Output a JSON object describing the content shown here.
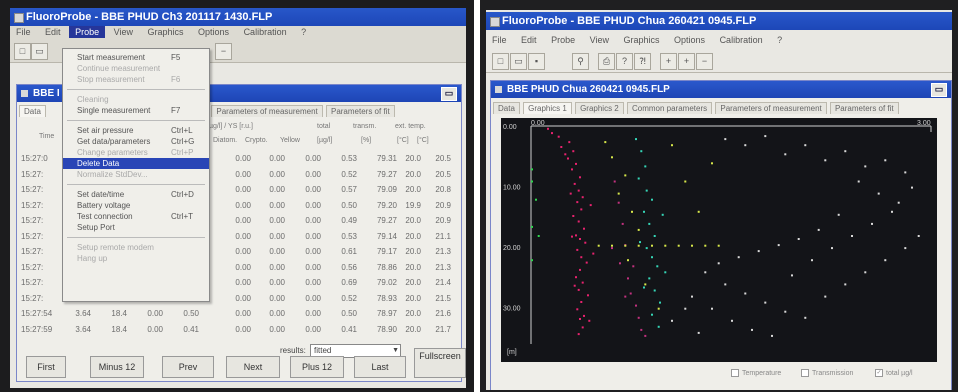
{
  "left": {
    "app_title": "FluoroProbe - BBE PHUD Ch3 201117 1430.FLP",
    "menu": [
      "File",
      "Edit",
      "Probe",
      "View",
      "Graphics",
      "Options",
      "Calibration",
      "?"
    ],
    "subwindow_title": "BBE I",
    "tabs": [
      "Data",
      "Parameters of measurement",
      "Parameters of fit"
    ],
    "header_row1": [
      "[µg/l] / YS [r.u.]",
      "total",
      "transm.",
      "ext. temp."
    ],
    "header_row2": [
      "Time",
      "Diatom.",
      "Crypto.",
      "Yellow",
      "[µg/l]",
      "[%]",
      "[°C]",
      "[°C]"
    ],
    "rows": [
      {
        "time": "15:27:0",
        "diatom": "0.00",
        "crypto": "0.00",
        "yellow": "0.00",
        "total": "0.53",
        "transm": "79.31",
        "ext": "20.0",
        "temp": "20.5"
      },
      {
        "time": "15:27:",
        "diatom": "0.00",
        "crypto": "0.00",
        "yellow": "0.00",
        "total": "0.52",
        "transm": "79.27",
        "ext": "20.0",
        "temp": "20.5"
      },
      {
        "time": "15:27:",
        "diatom": "0.00",
        "crypto": "0.00",
        "yellow": "0.00",
        "total": "0.57",
        "transm": "79.09",
        "ext": "20.0",
        "temp": "20.8"
      },
      {
        "time": "15:27:",
        "diatom": "0.00",
        "crypto": "0.00",
        "yellow": "0.00",
        "total": "0.50",
        "transm": "79.20",
        "ext": "19.9",
        "temp": "20.9"
      },
      {
        "time": "15:27:",
        "diatom": "0.00",
        "crypto": "0.00",
        "yellow": "0.00",
        "total": "0.49",
        "transm": "79.27",
        "ext": "20.0",
        "temp": "20.9"
      },
      {
        "time": "15:27:",
        "diatom": "0.00",
        "crypto": "0.00",
        "yellow": "0.00",
        "total": "0.53",
        "transm": "79.14",
        "ext": "20.0",
        "temp": "21.1"
      },
      {
        "time": "15:27:",
        "diatom": "0.00",
        "crypto": "0.00",
        "yellow": "0.00",
        "total": "0.61",
        "transm": "79.17",
        "ext": "20.0",
        "temp": "21.3"
      },
      {
        "time": "15:27:",
        "diatom": "0.00",
        "crypto": "0.00",
        "yellow": "0.00",
        "total": "0.56",
        "transm": "78.86",
        "ext": "20.0",
        "temp": "21.3"
      },
      {
        "time": "15:27:",
        "diatom": "0.00",
        "crypto": "0.00",
        "yellow": "0.00",
        "total": "0.69",
        "transm": "79.02",
        "ext": "20.0",
        "temp": "21.4"
      },
      {
        "time": "15:27:",
        "diatom": "0.00",
        "crypto": "0.00",
        "yellow": "0.00",
        "total": "0.52",
        "transm": "78.93",
        "ext": "20.0",
        "temp": "21.5"
      },
      {
        "time": "15:27:54",
        "a": "3.64",
        "b": "18.4",
        "c": "0.00",
        "d": "0.50",
        "diatom": "0.00",
        "crypto": "0.00",
        "yellow": "0.00",
        "total": "0.50",
        "transm": "78.97",
        "ext": "20.0",
        "temp": "21.6"
      },
      {
        "time": "15:27:59",
        "a": "3.64",
        "b": "18.4",
        "c": "0.00",
        "d": "0.41",
        "diatom": "0.00",
        "crypto": "0.00",
        "yellow": "0.00",
        "total": "0.41",
        "transm": "78.90",
        "ext": "20.0",
        "temp": "21.7"
      }
    ],
    "probe_menu": {
      "items": [
        {
          "label": "Start measurement",
          "key": "F5",
          "state": "normal"
        },
        {
          "label": "Continue measurement",
          "key": "",
          "state": "disabled"
        },
        {
          "label": "Stop measurement",
          "key": "F6",
          "state": "disabled"
        },
        {
          "sep": true
        },
        {
          "label": "Cleaning",
          "key": "",
          "state": "disabled"
        },
        {
          "label": "Single measurement",
          "key": "F7",
          "state": "normal"
        },
        {
          "sep": true
        },
        {
          "label": "Set air pressure",
          "key": "Ctrl+L",
          "state": "normal"
        },
        {
          "label": "Get data/parameters",
          "key": "Ctrl+G",
          "state": "normal"
        },
        {
          "label": "Change parameters",
          "key": "Ctrl+P",
          "state": "disabled"
        },
        {
          "label": "Delete Data",
          "key": "",
          "state": "highlighted"
        },
        {
          "label": "Normalize StdDev...",
          "key": "",
          "state": "disabled"
        },
        {
          "sep": true
        },
        {
          "label": "Set date/time",
          "key": "Ctrl+D",
          "state": "normal"
        },
        {
          "label": "Battery voltage",
          "key": "",
          "state": "normal"
        },
        {
          "label": "Test connection",
          "key": "Ctrl+T",
          "state": "normal"
        },
        {
          "label": "Setup Port",
          "key": "",
          "state": "normal"
        },
        {
          "sep": true
        },
        {
          "label": "Setup remote modem",
          "key": "",
          "state": "disabled"
        },
        {
          "label": "Hang up",
          "key": "",
          "state": "disabled"
        }
      ]
    },
    "results_label": "results:",
    "results_value": "fitted",
    "buttons": [
      "First",
      "Minus 12",
      "Prev",
      "Next",
      "Plus 12",
      "Last",
      "Fullscreen"
    ]
  },
  "right": {
    "app_title": "FluoroProbe - BBE PHUD Chua 260421 0945.FLP",
    "menu": [
      "File",
      "Edit",
      "Probe",
      "View",
      "Graphics",
      "Options",
      "Calibration",
      "?"
    ],
    "subwindow_title": "BBE PHUD Chua 260421 0945.FLP",
    "tabs": [
      "Data",
      "Graphics 1",
      "Graphics 2",
      "Common parameters",
      "Parameters of measurement",
      "Parameters of fit"
    ],
    "checkboxes": [
      {
        "label": "Temperature",
        "checked": false
      },
      {
        "label": "Transmission",
        "checked": false
      },
      {
        "label": "total µg/l",
        "checked": true
      }
    ]
  },
  "chart_data": {
    "type": "scatter",
    "title": "",
    "x_ticks": [
      "0.00",
      "3.00"
    ],
    "y_ticks": [
      "0.00",
      "10.00",
      "20.00",
      "30.00"
    ],
    "y_unit_label": "[m]",
    "xlim": [
      0,
      3
    ],
    "ylim": [
      0,
      36
    ],
    "y_inverted": true,
    "grid": false,
    "series": [
      {
        "color": "#e8226e",
        "points": [
          [
            0.12,
            0.3
          ],
          [
            0.15,
            1.0
          ],
          [
            0.2,
            1.6
          ],
          [
            0.28,
            2.5
          ],
          [
            0.22,
            3.3
          ],
          [
            0.31,
            4.0
          ],
          [
            0.27,
            5.2
          ],
          [
            0.33,
            6.1
          ],
          [
            0.3,
            7.0
          ],
          [
            0.36,
            8.3
          ],
          [
            0.32,
            9.4
          ],
          [
            0.35,
            10.5
          ],
          [
            0.38,
            11.6
          ],
          [
            0.34,
            12.4
          ],
          [
            0.37,
            13.6
          ],
          [
            0.31,
            14.7
          ],
          [
            0.35,
            15.6
          ],
          [
            0.39,
            16.8
          ],
          [
            0.33,
            17.9
          ],
          [
            0.36,
            18.5
          ],
          [
            0.4,
            19.1
          ],
          [
            0.34,
            20.3
          ],
          [
            0.37,
            21.5
          ],
          [
            0.41,
            22.4
          ],
          [
            0.36,
            23.6
          ],
          [
            0.33,
            24.8
          ],
          [
            0.38,
            25.7
          ],
          [
            0.35,
            26.9
          ],
          [
            0.42,
            27.8
          ],
          [
            0.37,
            28.9
          ],
          [
            0.34,
            30.1
          ],
          [
            0.39,
            31.2
          ],
          [
            0.43,
            32.0
          ],
          [
            0.38,
            33.1
          ],
          [
            0.35,
            34.2
          ],
          [
            0.25,
            4.5
          ],
          [
            0.29,
            11.0
          ],
          [
            0.3,
            18.1
          ],
          [
            0.32,
            26.2
          ],
          [
            0.36,
            31.7
          ],
          [
            0.44,
            12.9
          ],
          [
            0.46,
            20.9
          ]
        ]
      },
      {
        "color": "#c3317f",
        "points": [
          [
            0.62,
            9.0
          ],
          [
            0.65,
            12.5
          ],
          [
            0.68,
            16.0
          ],
          [
            0.7,
            19.5
          ],
          [
            0.66,
            22.5
          ],
          [
            0.72,
            25.0
          ],
          [
            0.74,
            27.5
          ],
          [
            0.78,
            29.5
          ],
          [
            0.8,
            31.5
          ],
          [
            0.82,
            33.5
          ],
          [
            0.85,
            34.5
          ],
          [
            0.6,
            20.0
          ],
          [
            0.76,
            23.0
          ],
          [
            0.7,
            28.0
          ]
        ]
      },
      {
        "color": "#35d6b7",
        "points": [
          [
            0.78,
            2.0
          ],
          [
            0.82,
            4.0
          ],
          [
            0.85,
            6.5
          ],
          [
            0.8,
            8.5
          ],
          [
            0.86,
            10.5
          ],
          [
            0.9,
            12.0
          ],
          [
            0.84,
            14.0
          ],
          [
            0.88,
            16.0
          ],
          [
            0.92,
            18.0
          ],
          [
            0.86,
            20.0
          ],
          [
            0.9,
            21.5
          ],
          [
            0.94,
            23.0
          ],
          [
            0.88,
            25.0
          ],
          [
            0.92,
            27.0
          ],
          [
            0.96,
            29.0
          ],
          [
            0.9,
            31.0
          ],
          [
            0.95,
            33.0
          ],
          [
            0.98,
            14.5
          ],
          [
            0.81,
            19.0
          ],
          [
            1.0,
            24.0
          ],
          [
            0.84,
            26.5
          ]
        ]
      },
      {
        "color": "#d7e84a",
        "points": [
          [
            0.55,
            2.5
          ],
          [
            0.6,
            5.0
          ],
          [
            0.7,
            8.0
          ],
          [
            0.65,
            11.0
          ],
          [
            0.75,
            14.0
          ],
          [
            0.8,
            17.0
          ],
          [
            0.9,
            19.6
          ],
          [
            1.0,
            19.6
          ],
          [
            1.1,
            19.6
          ],
          [
            1.2,
            19.6
          ],
          [
            1.3,
            19.6
          ],
          [
            1.4,
            19.6
          ],
          [
            0.5,
            19.6
          ],
          [
            0.6,
            19.6
          ],
          [
            0.7,
            19.6
          ],
          [
            0.8,
            19.6
          ],
          [
            1.25,
            14.0
          ],
          [
            1.15,
            9.0
          ],
          [
            1.35,
            6.0
          ],
          [
            1.05,
            3.0
          ],
          [
            0.72,
            22.0
          ],
          [
            0.85,
            26.0
          ],
          [
            0.95,
            30.0
          ]
        ]
      },
      {
        "color": "#2fd84f",
        "points": [
          [
            0.0,
            7.0
          ],
          [
            0.0,
            9.0
          ],
          [
            0.0,
            16.5
          ],
          [
            0.0,
            22.0
          ],
          [
            0.03,
            12.0
          ],
          [
            0.05,
            18.0
          ]
        ]
      },
      {
        "color": "#d9d9d9",
        "points": [
          [
            1.45,
            2.0
          ],
          [
            1.6,
            3.0
          ],
          [
            1.75,
            1.5
          ],
          [
            1.9,
            4.5
          ],
          [
            2.05,
            3.0
          ],
          [
            2.2,
            5.5
          ],
          [
            2.35,
            4.0
          ],
          [
            2.5,
            6.5
          ],
          [
            2.65,
            5.5
          ],
          [
            2.8,
            7.5
          ],
          [
            2.45,
            9.0
          ],
          [
            2.6,
            11.0
          ],
          [
            2.75,
            12.5
          ],
          [
            2.3,
            14.5
          ],
          [
            2.15,
            17.0
          ],
          [
            2.0,
            18.5
          ],
          [
            1.85,
            19.5
          ],
          [
            1.7,
            20.5
          ],
          [
            1.55,
            21.5
          ],
          [
            1.4,
            22.5
          ],
          [
            1.3,
            24.0
          ],
          [
            1.45,
            26.0
          ],
          [
            1.6,
            27.5
          ],
          [
            1.75,
            29.0
          ],
          [
            1.9,
            30.5
          ],
          [
            2.05,
            31.5
          ],
          [
            2.2,
            28.0
          ],
          [
            2.35,
            26.0
          ],
          [
            2.5,
            24.0
          ],
          [
            2.65,
            22.0
          ],
          [
            2.8,
            20.0
          ],
          [
            2.9,
            18.0
          ],
          [
            1.2,
            28.0
          ],
          [
            1.35,
            30.0
          ],
          [
            1.5,
            32.0
          ],
          [
            1.65,
            33.5
          ],
          [
            1.8,
            34.5
          ],
          [
            2.1,
            22.0
          ],
          [
            2.25,
            20.0
          ],
          [
            1.95,
            24.5
          ],
          [
            2.4,
            18.0
          ],
          [
            2.55,
            16.0
          ],
          [
            2.7,
            14.0
          ],
          [
            2.85,
            10.0
          ],
          [
            1.15,
            30.0
          ],
          [
            1.05,
            32.0
          ],
          [
            1.25,
            34.0
          ]
        ]
      }
    ]
  }
}
